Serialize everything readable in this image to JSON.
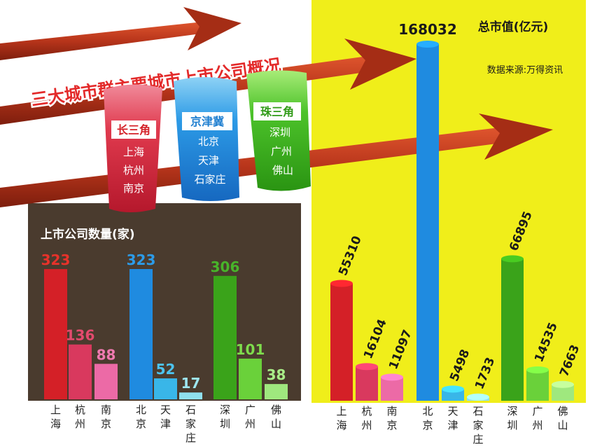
{
  "header": {
    "title": "三大城市群主要城市上市公司概况"
  },
  "legend": {
    "groups": [
      {
        "name": "长三角",
        "cities": [
          "上海",
          "杭州",
          "南京"
        ],
        "color": "#d42027"
      },
      {
        "name": "京津冀",
        "cities": [
          "北京",
          "天津",
          "石家庄"
        ],
        "color": "#1f8be0"
      },
      {
        "name": "珠三角",
        "cities": [
          "深圳",
          "广州",
          "佛山"
        ],
        "color": "#3aa31a"
      }
    ]
  },
  "colors": {
    "left_panel_bg": "#4a3b2e",
    "right_panel_bg": "#f0ee1a",
    "arrow": "#b83a1f"
  },
  "chart_data": [
    {
      "type": "bar",
      "title": "上市公司数量(家)",
      "categories": [
        "上海",
        "杭州",
        "南京",
        "北京",
        "天津",
        "石家庄",
        "深圳",
        "广州",
        "佛山"
      ],
      "values": [
        323,
        136,
        88,
        323,
        52,
        17,
        306,
        101,
        38
      ],
      "bar_colors": [
        "#d42027",
        "#d9395e",
        "#ec6aa6",
        "#1f8be0",
        "#39b6e8",
        "#8fe0ee",
        "#3aa31a",
        "#6ad13a",
        "#9fe87e"
      ],
      "label_colors": [
        "#e8322a",
        "#e34a6e",
        "#f07ab0",
        "#2c9be8",
        "#4cc3ef",
        "#9ee6f0",
        "#48b42a",
        "#7edc4c",
        "#a9ee88"
      ],
      "ylim": [
        0,
        323
      ],
      "grid": false,
      "legend": "none"
    },
    {
      "type": "bar",
      "title": "总市值(亿元)",
      "subtitle": "数据来源:万得资讯",
      "categories": [
        "上海",
        "杭州",
        "南京",
        "北京",
        "天津",
        "石家庄",
        "深圳",
        "广州",
        "佛山"
      ],
      "values": [
        55310,
        16104,
        11097,
        168032,
        5498,
        1733,
        66895,
        14535,
        7663
      ],
      "bar_colors": [
        "#d42027",
        "#d9395e",
        "#ec6aa6",
        "#1f8be0",
        "#39b6e8",
        "#8fe0ee",
        "#3aa31a",
        "#6ad13a",
        "#9fe87e"
      ],
      "ylim": [
        0,
        168032
      ],
      "grid": false,
      "legend": "none"
    }
  ]
}
